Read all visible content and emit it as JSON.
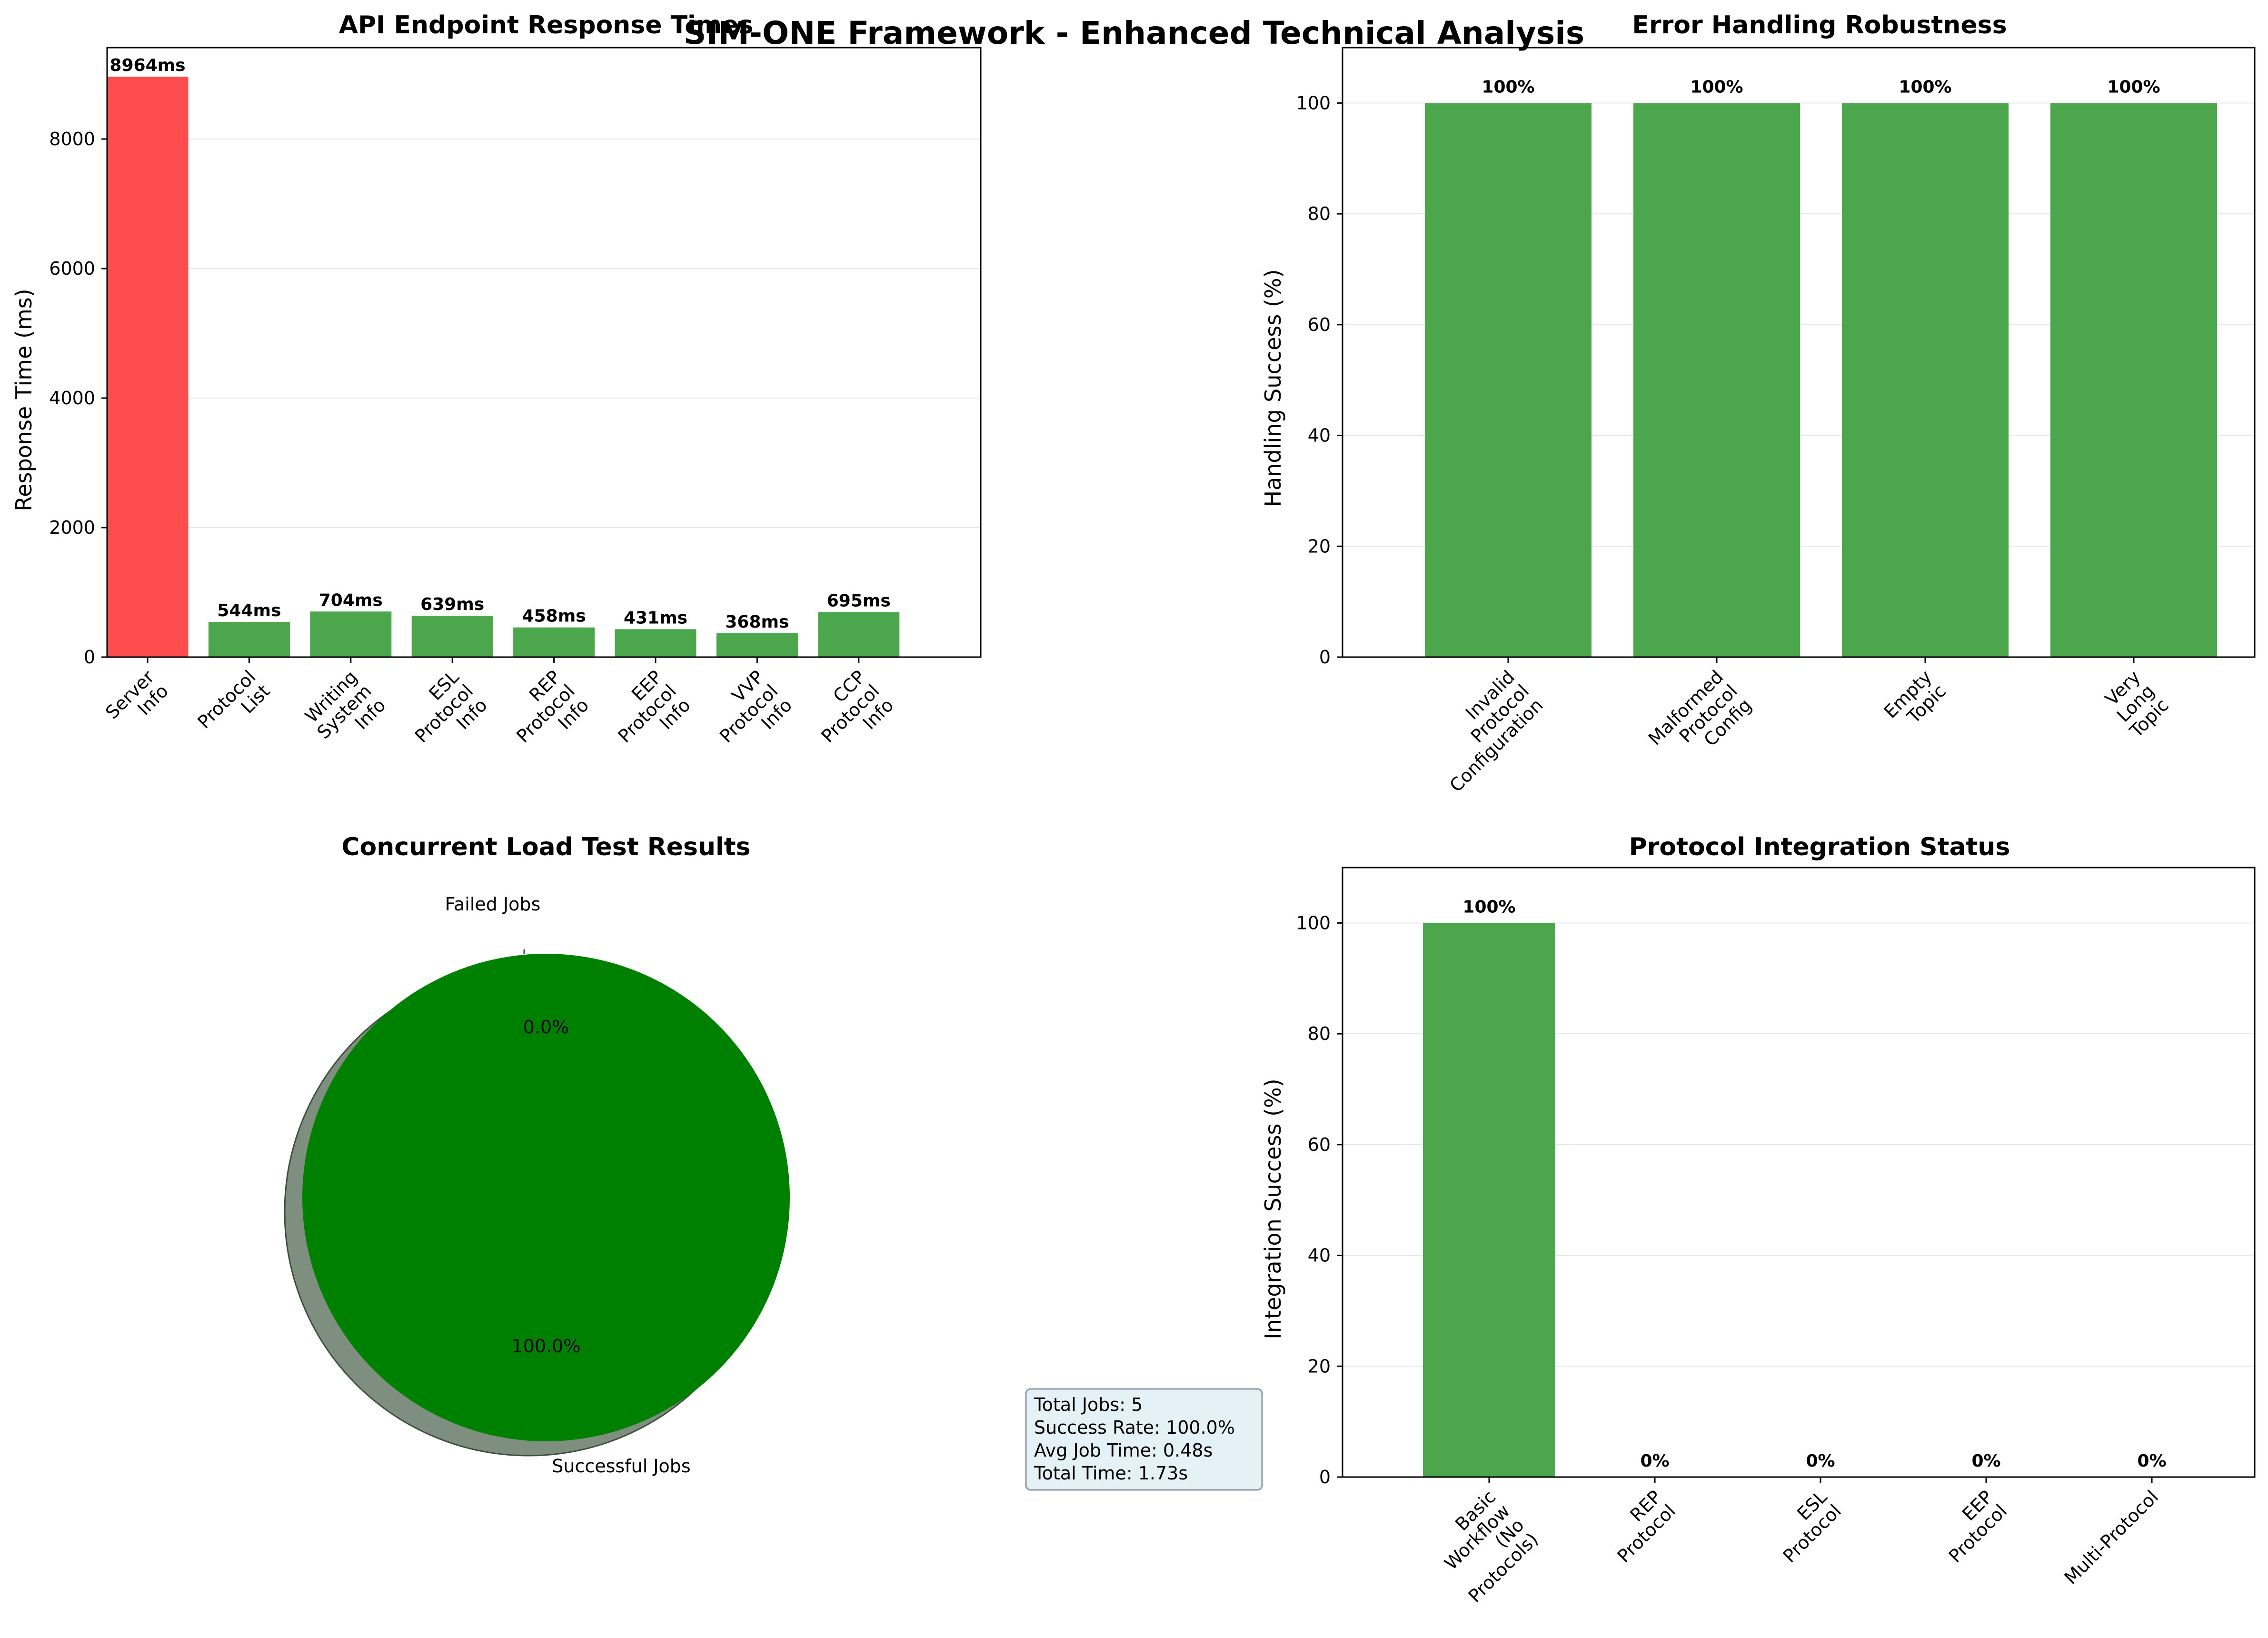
{
  "title": "SIM-ONE Framework - Enhanced Technical Analysis",
  "colors": {
    "red": "#ff4c4c",
    "green": "#4ca64c",
    "pie_green": "#008000",
    "pie_shadow": "#7f8f7f",
    "grid": "#e6e6e6"
  },
  "chart_data": [
    {
      "type": "bar",
      "title": "API Endpoint Response Times",
      "ylabel": "Response Time (ms)",
      "categories": [
        "Server\nInfo",
        "Protocol\nList",
        "Writing\nSystem\nInfo",
        "ESL\nProtocol\nInfo",
        "REP\nProtocol\nInfo",
        "EEP\nProtocol\nInfo",
        "VVP\nProtocol\nInfo",
        "CCP\nProtocol\nInfo"
      ],
      "values": [
        8964,
        544,
        704,
        639,
        458,
        431,
        368,
        695
      ],
      "value_labels": [
        "8964ms",
        "544ms",
        "704ms",
        "639ms",
        "458ms",
        "431ms",
        "368ms",
        "695ms"
      ],
      "bar_colors": [
        "red",
        "green",
        "green",
        "green",
        "green",
        "green",
        "green",
        "green"
      ],
      "ylim": [
        0,
        9412
      ],
      "yticks": [
        0,
        2000,
        4000,
        6000,
        8000
      ],
      "grid": true
    },
    {
      "type": "bar",
      "title": "Error Handling Robustness",
      "ylabel": "Handling Success (%)",
      "categories": [
        "Invalid\nProtocol\nConfiguration",
        "Malformed\nProtocol\nConfig",
        "Empty\nTopic",
        "Very\nLong\nTopic"
      ],
      "values": [
        100,
        100,
        100,
        100
      ],
      "value_labels": [
        "100%",
        "100%",
        "100%",
        "100%"
      ],
      "ylim": [
        0,
        110
      ],
      "yticks": [
        0,
        20,
        40,
        60,
        80,
        100
      ],
      "grid": true
    },
    {
      "type": "pie",
      "title": "Concurrent Load Test Results",
      "labels": [
        "Successful Jobs",
        "Failed Jobs"
      ],
      "values": [
        5,
        0
      ],
      "percent_labels": [
        "100.0%",
        "0.0%"
      ],
      "stats": [
        "Total Jobs: 5",
        "Success Rate: 100.0%",
        "Avg Job Time: 0.48s",
        "Total Time: 1.73s"
      ]
    },
    {
      "type": "bar",
      "title": "Protocol Integration Status",
      "ylabel": "Integration Success (%)",
      "categories": [
        "Basic\nWorkflow\n(No\nProtocols)",
        "REP\nProtocol",
        "ESL\nProtocol",
        "EEP\nProtocol",
        "Multi-Protocol"
      ],
      "values": [
        100,
        0,
        0,
        0,
        0
      ],
      "value_labels": [
        "100%",
        "0%",
        "0%",
        "0%",
        "0%"
      ],
      "ylim": [
        0,
        110
      ],
      "yticks": [
        0,
        20,
        40,
        60,
        80,
        100
      ],
      "grid": true
    }
  ]
}
